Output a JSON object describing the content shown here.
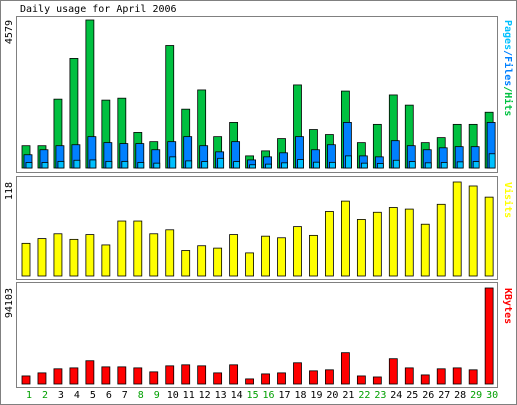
{
  "chart_data": [
    {
      "type": "bar",
      "title": "Daily usage for April 2006",
      "ylim": [
        0,
        4579
      ],
      "yticks": [
        4579
      ],
      "legend_separator": "/",
      "series": [
        {
          "name": "Hits",
          "color": "#00c040",
          "values": [
            690,
            690,
            2130,
            3390,
            4579,
            2100,
            2160,
            1100,
            815,
            3790,
            1820,
            2415,
            970,
            1410,
            375,
            530,
            910,
            2570,
            1190,
            1035,
            2380,
            785,
            1350,
            2260,
            1945,
            785,
            940,
            1350,
            1350,
            1725
          ]
        },
        {
          "name": "Files",
          "color": "#0080ff",
          "values": [
            410,
            565,
            690,
            720,
            970,
            785,
            755,
            755,
            565,
            815,
            970,
            690,
            500,
            815,
            250,
            345,
            470,
            970,
            565,
            720,
            1410,
            375,
            345,
            845,
            690,
            565,
            625,
            660,
            660,
            1410
          ]
        },
        {
          "name": "Pages",
          "color": "#00c0ff",
          "values": [
            170,
            170,
            205,
            240,
            250,
            205,
            205,
            170,
            150,
            345,
            220,
            200,
            300,
            200,
            100,
            120,
            160,
            260,
            180,
            175,
            375,
            150,
            140,
            240,
            200,
            160,
            170,
            190,
            200,
            440
          ]
        }
      ]
    },
    {
      "type": "bar",
      "ylim": [
        0,
        118
      ],
      "yticks": [
        118
      ],
      "series": [
        {
          "name": "Visits",
          "color": "#ffff00",
          "values": [
            41,
            47,
            53,
            46,
            52,
            39,
            69,
            69,
            53,
            58,
            32,
            38,
            35,
            52,
            29,
            50,
            48,
            62,
            51,
            81,
            94,
            71,
            80,
            86,
            84,
            65,
            90,
            118,
            113,
            99
          ]
        }
      ]
    },
    {
      "type": "bar",
      "ylim": [
        0,
        94103
      ],
      "yticks": [
        94103
      ],
      "series": [
        {
          "name": "KBytes",
          "color": "#ff0000",
          "values": [
            7900,
            10900,
            14900,
            15800,
            22800,
            16800,
            16800,
            15800,
            11900,
            17800,
            18800,
            17800,
            10900,
            18800,
            5000,
            9900,
            10900,
            20800,
            12900,
            13900,
            30700,
            7900,
            6900,
            24800,
            15800,
            8900,
            14900,
            15800,
            13900,
            94103
          ]
        }
      ],
      "categories": [
        "1",
        "2",
        "3",
        "4",
        "5",
        "6",
        "7",
        "8",
        "9",
        "10",
        "11",
        "12",
        "13",
        "14",
        "15",
        "16",
        "17",
        "18",
        "19",
        "20",
        "21",
        "22",
        "23",
        "24",
        "25",
        "26",
        "27",
        "28",
        "29",
        "30"
      ],
      "xtick_colors": [
        "#00a000",
        "#00a000",
        "#000000",
        "#000000",
        "#000000",
        "#000000",
        "#000000",
        "#00a000",
        "#00a000",
        "#000000",
        "#000000",
        "#000000",
        "#000000",
        "#000000",
        "#00a000",
        "#00a000",
        "#000000",
        "#000000",
        "#000000",
        "#000000",
        "#000000",
        "#00a000",
        "#00a000",
        "#000000",
        "#000000",
        "#000000",
        "#000000",
        "#000000",
        "#00a000",
        "#00a000"
      ]
    }
  ]
}
